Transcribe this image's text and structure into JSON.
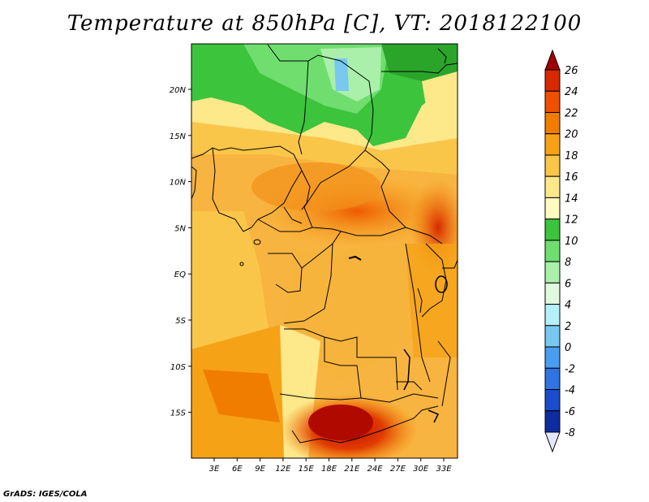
{
  "title": "Temperature at 850hPa [C], VT: 2018122100",
  "credit": "GrADS: IGES/COLA",
  "map": {
    "lat_labels": [
      "20N",
      "15N",
      "10N",
      "5N",
      "EQ",
      "5S",
      "10S",
      "15S"
    ],
    "lon_labels": [
      "3E",
      "6E",
      "9E",
      "12E",
      "15E",
      "18E",
      "21E",
      "24E",
      "27E",
      "30E",
      "33E"
    ]
  },
  "colorbar": {
    "labels": [
      "26",
      "24",
      "22",
      "20",
      "18",
      "16",
      "14",
      "12",
      "10",
      "8",
      "6",
      "4",
      "2",
      "0",
      "-2",
      "-4",
      "-6",
      "-8"
    ],
    "colors": [
      "#a00000",
      "#d72800",
      "#ee5000",
      "#f07c00",
      "#f5a216",
      "#fac64a",
      "#fde88a",
      "#fffbc0",
      "#3cc43c",
      "#6fde6f",
      "#aaf0aa",
      "#e0fae0",
      "#b4f0fa",
      "#78c8f0",
      "#4a9ef0",
      "#2f74e0",
      "#1a4ccc",
      "#0c2ca0",
      "#000064"
    ]
  }
}
